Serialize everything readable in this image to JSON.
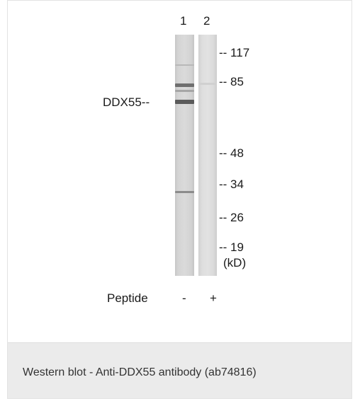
{
  "blot": {
    "lanes": [
      {
        "number": "1",
        "peptide": "-"
      },
      {
        "number": "2",
        "peptide": "+"
      }
    ],
    "markers": [
      {
        "label": "-- 117",
        "kd": 117
      },
      {
        "label": "-- 85",
        "kd": 85
      },
      {
        "label": "-- 48",
        "kd": 48
      },
      {
        "label": "-- 34",
        "kd": 34
      },
      {
        "label": "-- 26",
        "kd": 26
      },
      {
        "label": "-- 19",
        "kd": 19
      }
    ],
    "unit_label": "(kD)",
    "target_label": "DDX55--",
    "peptide_label": "Peptide"
  },
  "caption": "Western blot - Anti-DDX55 antibody (ab74816)"
}
